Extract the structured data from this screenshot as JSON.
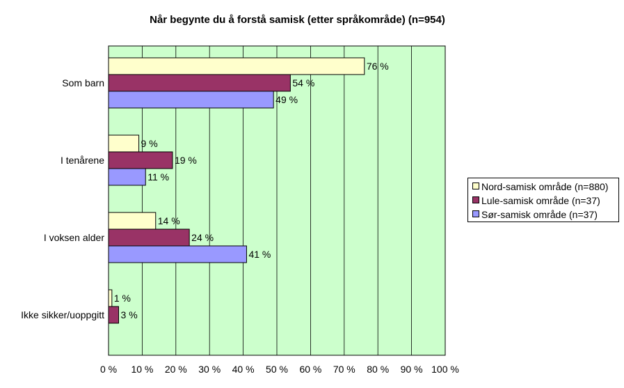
{
  "chart_data": {
    "type": "bar",
    "orientation": "horizontal",
    "title": "Når begynte du å forstå samisk (etter språkområde) (n=954)",
    "categories": [
      "Som barn",
      "I tenårene",
      "I voksen alder",
      "Ikke sikker/uoppgitt"
    ],
    "series": [
      {
        "name": "Nord-samisk område (n=880)",
        "color": "#ffffcc",
        "values": [
          76,
          9,
          14,
          1
        ],
        "labels": [
          "76 %",
          "9 %",
          "14 %",
          "1 %"
        ]
      },
      {
        "name": "Lule-samisk område (n=37)",
        "color": "#993366",
        "values": [
          54,
          19,
          24,
          3
        ],
        "labels": [
          "54 %",
          "19 %",
          "24 %",
          "3 %"
        ]
      },
      {
        "name": "Sør-samisk område (n=37)",
        "color": "#9999ff",
        "values": [
          49,
          11,
          41,
          null
        ],
        "labels": [
          "49 %",
          "11 %",
          "41 %",
          ""
        ]
      }
    ],
    "x_ticks": [
      "0 %",
      "10 %",
      "20 %",
      "30 %",
      "40 %",
      "50 %",
      "60 %",
      "70 %",
      "80 %",
      "90 %",
      "100 %"
    ],
    "xlim": [
      0,
      100
    ],
    "plot_background": "#ccffcc",
    "grid": true,
    "legend_position": "right"
  }
}
